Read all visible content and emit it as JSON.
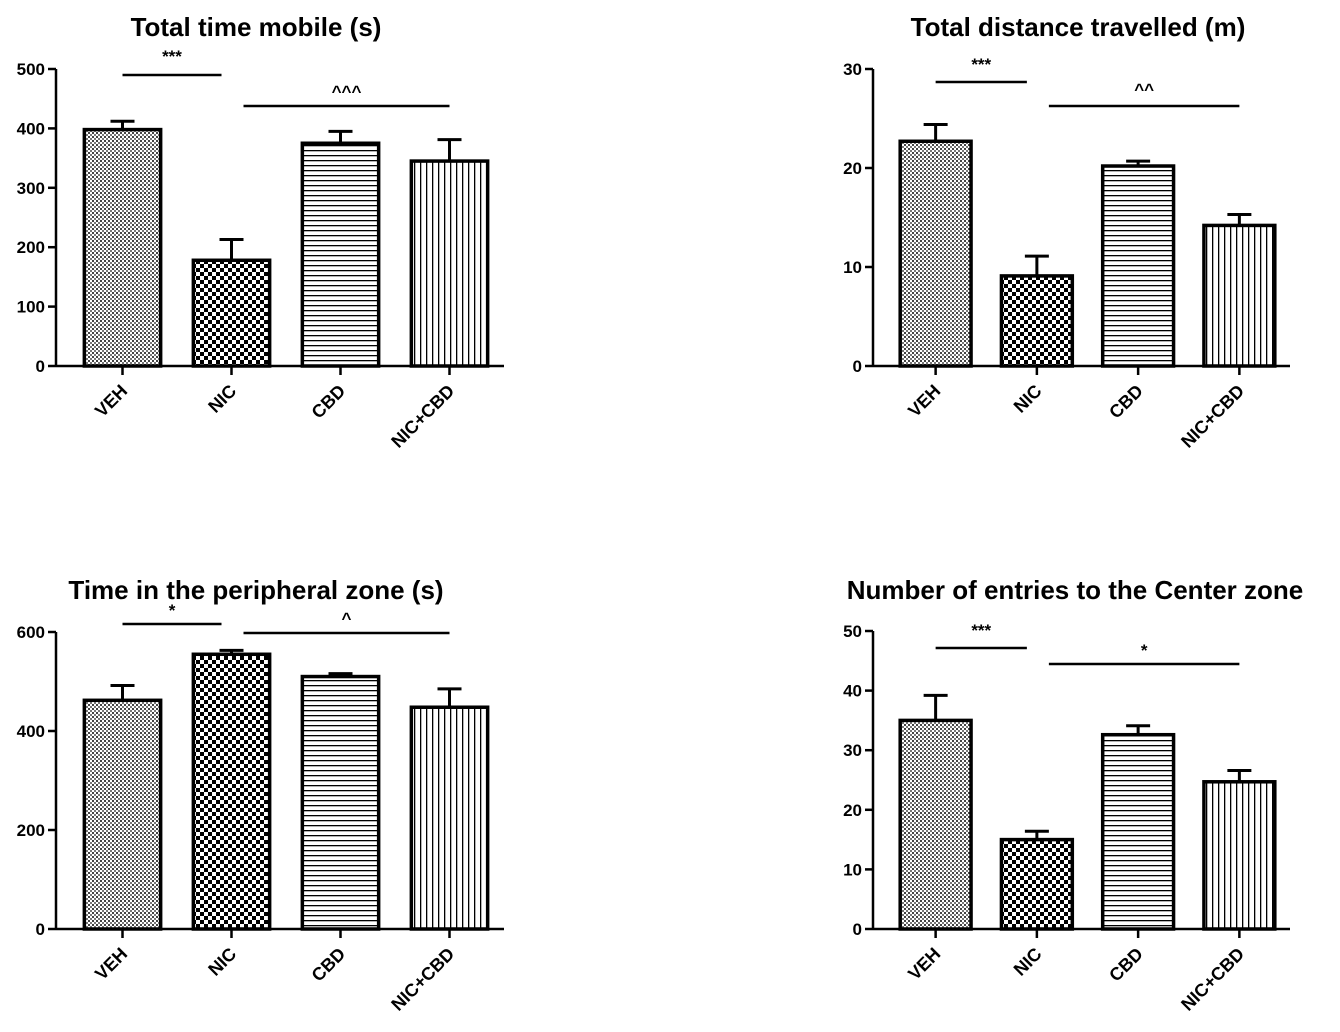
{
  "figure": {
    "chart_data": [
      {
        "type": "bar",
        "title": "Total time mobile (s)",
        "xlabel": "",
        "ylabel": "",
        "categories": [
          "VEH",
          "NIC",
          "CBD",
          "NIC+CBD"
        ],
        "values": [
          398,
          178,
          375,
          345
        ],
        "errors": [
          14,
          35,
          20,
          36
        ],
        "ylim": [
          0,
          500
        ],
        "yticks": [
          0,
          100,
          200,
          300,
          400,
          500
        ],
        "ytick_labels": [
          "0",
          "100",
          "200",
          "300",
          "400",
          "500"
        ],
        "patterns": [
          "fine-dots",
          "checker",
          "horizontal-lines",
          "vertical-lines"
        ],
        "significance": [
          {
            "from": 0,
            "to": 1,
            "label": "***"
          },
          {
            "from": 1,
            "to": 3,
            "label": "^^^"
          }
        ]
      },
      {
        "type": "bar",
        "title": "Total distance travelled (m)",
        "xlabel": "",
        "ylabel": "",
        "categories": [
          "VEH",
          "NIC",
          "CBD",
          "NIC+CBD"
        ],
        "values": [
          22.7,
          9.1,
          20.2,
          14.2
        ],
        "errors": [
          1.7,
          2.0,
          0.5,
          1.1
        ],
        "ylim": [
          0,
          30
        ],
        "yticks": [
          0,
          10,
          20,
          30
        ],
        "ytick_labels": [
          "0",
          "10",
          "20",
          "30"
        ],
        "patterns": [
          "fine-dots",
          "checker",
          "horizontal-lines",
          "vertical-lines"
        ],
        "significance": [
          {
            "from": 0,
            "to": 1,
            "label": "***"
          },
          {
            "from": 1,
            "to": 3,
            "label": "^^"
          }
        ]
      },
      {
        "type": "bar",
        "title": "Time in the peripheral zone (s)",
        "xlabel": "",
        "ylabel": "",
        "categories": [
          "VEH",
          "NIC",
          "CBD",
          "NIC+CBD"
        ],
        "values": [
          462,
          555,
          510,
          448
        ],
        "errors": [
          30,
          8,
          6,
          37
        ],
        "ylim": [
          0,
          600
        ],
        "yticks": [
          0,
          200,
          400,
          600
        ],
        "ytick_labels": [
          "0",
          "200",
          "400",
          "600"
        ],
        "patterns": [
          "fine-dots",
          "checker",
          "horizontal-lines",
          "vertical-lines"
        ],
        "significance": [
          {
            "from": 0,
            "to": 1,
            "label": "*"
          },
          {
            "from": 1,
            "to": 3,
            "label": "^"
          }
        ]
      },
      {
        "type": "bar",
        "title": "Number of entries to the Center zone",
        "xlabel": "",
        "ylabel": "",
        "categories": [
          "VEH",
          "NIC",
          "CBD",
          "NIC+CBD"
        ],
        "values": [
          35,
          15,
          32.6,
          24.7
        ],
        "errors": [
          4.2,
          1.4,
          1.5,
          1.9
        ],
        "ylim": [
          0,
          50
        ],
        "yticks": [
          0,
          10,
          20,
          30,
          40,
          50
        ],
        "ytick_labels": [
          "0",
          "10",
          "20",
          "30",
          "40",
          "50"
        ],
        "patterns": [
          "fine-dots",
          "checker",
          "horizontal-lines",
          "vertical-lines"
        ],
        "significance": [
          {
            "from": 0,
            "to": 1,
            "label": "***"
          },
          {
            "from": 1,
            "to": 3,
            "label": "*"
          }
        ]
      }
    ]
  }
}
